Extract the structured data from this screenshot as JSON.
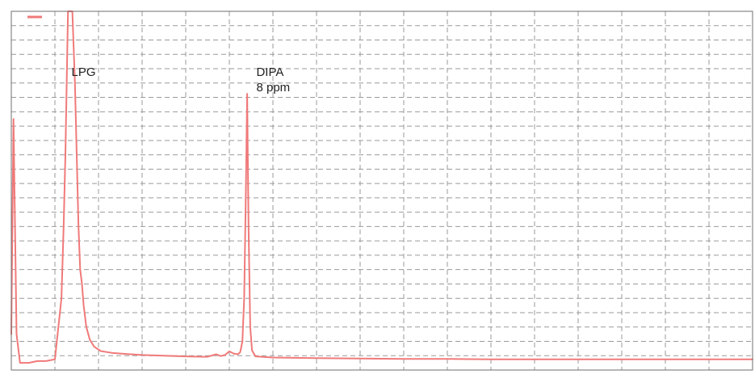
{
  "colors": {
    "trace": "#f07a7a",
    "grid": "#9a9a9a",
    "frame": "#6f6f6f",
    "background": "#ffffff"
  },
  "chart_data": {
    "type": "line",
    "grid": true,
    "legend": "top-left",
    "xlim": [
      0,
      17
    ],
    "ylim": [
      0,
      100
    ],
    "x_major_step": 1,
    "y_major_step": 4,
    "series": [
      {
        "color": "#f07a7a",
        "points": [
          [
            0.0,
            10.0
          ],
          [
            0.05,
            70.0
          ],
          [
            0.12,
            10.0
          ],
          [
            0.2,
            2.0
          ],
          [
            0.4,
            2.0
          ],
          [
            0.6,
            2.5
          ],
          [
            0.8,
            2.5
          ],
          [
            1.0,
            3.0
          ],
          [
            1.15,
            20.0
          ],
          [
            1.2,
            40.0
          ],
          [
            1.24,
            60.0
          ],
          [
            1.27,
            80.0
          ],
          [
            1.3,
            100.0
          ],
          [
            1.4,
            100.0
          ],
          [
            1.46,
            80.0
          ],
          [
            1.5,
            60.0
          ],
          [
            1.54,
            40.0
          ],
          [
            1.58,
            28.0
          ],
          [
            1.62,
            24.0
          ],
          [
            1.66,
            18.0
          ],
          [
            1.72,
            12.0
          ],
          [
            1.8,
            8.5
          ],
          [
            1.9,
            6.5
          ],
          [
            2.05,
            5.3
          ],
          [
            2.3,
            4.8
          ],
          [
            2.6,
            4.5
          ],
          [
            3.0,
            4.2
          ],
          [
            3.5,
            4.0
          ],
          [
            4.0,
            3.8
          ],
          [
            4.5,
            3.7
          ],
          [
            4.7,
            4.4
          ],
          [
            4.8,
            3.9
          ],
          [
            4.9,
            4.2
          ],
          [
            5.0,
            5.2
          ],
          [
            5.1,
            4.6
          ],
          [
            5.2,
            4.4
          ],
          [
            5.25,
            5.0
          ],
          [
            5.3,
            8.0
          ],
          [
            5.34,
            20.0
          ],
          [
            5.38,
            50.0
          ],
          [
            5.41,
            77.0
          ],
          [
            5.44,
            40.0
          ],
          [
            5.48,
            12.0
          ],
          [
            5.52,
            5.5
          ],
          [
            5.6,
            3.8
          ],
          [
            6.0,
            3.5
          ],
          [
            7.0,
            3.3
          ],
          [
            8.0,
            3.2
          ],
          [
            9.0,
            3.1
          ],
          [
            10.0,
            3.1
          ],
          [
            11.0,
            3.0
          ],
          [
            12.0,
            3.0
          ],
          [
            13.0,
            3.0
          ],
          [
            14.0,
            3.0
          ],
          [
            15.0,
            3.0
          ],
          [
            16.0,
            3.0
          ],
          [
            17.0,
            3.0
          ]
        ]
      }
    ],
    "annotations": [
      {
        "name": "annotation-lpg",
        "lines": [
          "LPG"
        ],
        "x": 1.38,
        "y": 82
      },
      {
        "name": "annotation-dipa",
        "lines": [
          "DIPA",
          "8 ppm"
        ],
        "x": 5.62,
        "y": 82
      }
    ]
  }
}
